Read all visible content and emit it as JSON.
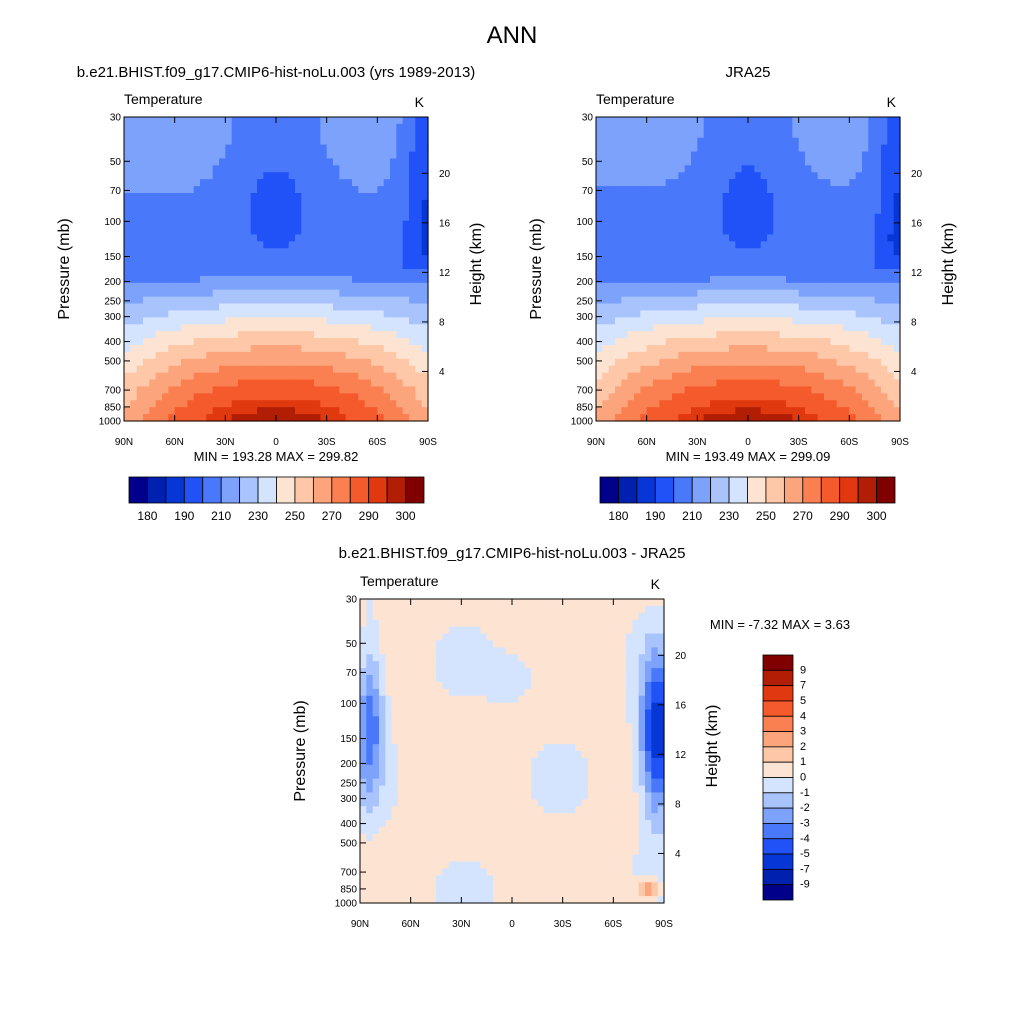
{
  "figure_title": "ANN",
  "chart_data": [
    {
      "type": "heatmap",
      "title": "b.e21.BHIST.f09_g17.CMIP6-hist-noLu.003 (yrs 1989-2013)",
      "variable": "Temperature",
      "units": "K",
      "xlabel": "",
      "ylabel": "Pressure (mb)",
      "ylabel_right": "Height (km)",
      "x_ticks": [
        "90N",
        "60N",
        "30N",
        "0",
        "30S",
        "60S",
        "90S"
      ],
      "x_lim": [
        90,
        -90
      ],
      "y_scale": "log",
      "y_lim": [
        1000,
        30
      ],
      "y_ticks": [
        30,
        50,
        70,
        100,
        150,
        200,
        250,
        300,
        400,
        500,
        700,
        850,
        1000
      ],
      "height_ticks_km": [
        4,
        8,
        12,
        16,
        20
      ],
      "stats_text": "MIN = 193.28  MAX = 299.82",
      "min": 193.28,
      "max": 299.82,
      "colorbar": {
        "orientation": "horizontal",
        "tick_labels": [
          "180",
          "190",
          "210",
          "230",
          "250",
          "270",
          "290",
          "300"
        ],
        "colors": [
          "#00008a",
          "#0020b0",
          "#0636d6",
          "#2152f7",
          "#4a78fb",
          "#7ca2fc",
          "#a9c4fd",
          "#d4e4fe",
          "#fde3d2",
          "#fdc7a8",
          "#fca57c",
          "#fa8052",
          "#f55a2c",
          "#e0380f",
          "#b21e05",
          "#800000"
        ]
      }
    },
    {
      "type": "heatmap",
      "title": "JRA25",
      "variable": "Temperature",
      "units": "K",
      "xlabel": "",
      "ylabel": "Pressure (mb)",
      "ylabel_right": "Height (km)",
      "x_ticks": [
        "90N",
        "60N",
        "30N",
        "0",
        "30S",
        "60S",
        "90S"
      ],
      "x_lim": [
        90,
        -90
      ],
      "y_scale": "log",
      "y_lim": [
        1000,
        30
      ],
      "y_ticks": [
        30,
        50,
        70,
        100,
        150,
        200,
        250,
        300,
        400,
        500,
        700,
        850,
        1000
      ],
      "height_ticks_km": [
        4,
        8,
        12,
        16,
        20
      ],
      "stats_text": "MIN = 193.49  MAX = 299.09",
      "min": 193.49,
      "max": 299.09,
      "colorbar": {
        "orientation": "horizontal",
        "tick_labels": [
          "180",
          "190",
          "210",
          "230",
          "250",
          "270",
          "290",
          "300"
        ],
        "colors": [
          "#00008a",
          "#0020b0",
          "#0636d6",
          "#2152f7",
          "#4a78fb",
          "#7ca2fc",
          "#a9c4fd",
          "#d4e4fe",
          "#fde3d2",
          "#fdc7a8",
          "#fca57c",
          "#fa8052",
          "#f55a2c",
          "#e0380f",
          "#b21e05",
          "#800000"
        ]
      }
    },
    {
      "type": "heatmap",
      "title": "b.e21.BHIST.f09_g17.CMIP6-hist-noLu.003 - JRA25",
      "variable": "Temperature",
      "units": "K",
      "xlabel": "",
      "ylabel": "Pressure (mb)",
      "ylabel_right": "Height (km)",
      "x_ticks": [
        "90N",
        "60N",
        "30N",
        "0",
        "30S",
        "60S",
        "90S"
      ],
      "x_lim": [
        90,
        -90
      ],
      "y_scale": "log",
      "y_lim": [
        1000,
        30
      ],
      "y_ticks": [
        30,
        50,
        70,
        100,
        150,
        200,
        250,
        300,
        400,
        500,
        700,
        850,
        1000
      ],
      "height_ticks_km": [
        4,
        8,
        12,
        16,
        20
      ],
      "stats_text": "MIN =  -7.32  MAX =   3.63",
      "min": -7.32,
      "max": 3.63,
      "colorbar": {
        "orientation": "vertical",
        "tick_labels": [
          "9",
          "7",
          "5",
          "4",
          "3",
          "2",
          "1",
          "0",
          "-1",
          "-2",
          "-3",
          "-4",
          "-5",
          "-7",
          "-9"
        ],
        "colors": [
          "#800000",
          "#b21e05",
          "#e0380f",
          "#f55a2c",
          "#fa8052",
          "#fca57c",
          "#fdc7a8",
          "#fde3d2",
          "#d4e4fe",
          "#a9c4fd",
          "#7ca2fc",
          "#4a78fb",
          "#2152f7",
          "#0636d6",
          "#0020b0",
          "#00008a"
        ]
      }
    }
  ]
}
